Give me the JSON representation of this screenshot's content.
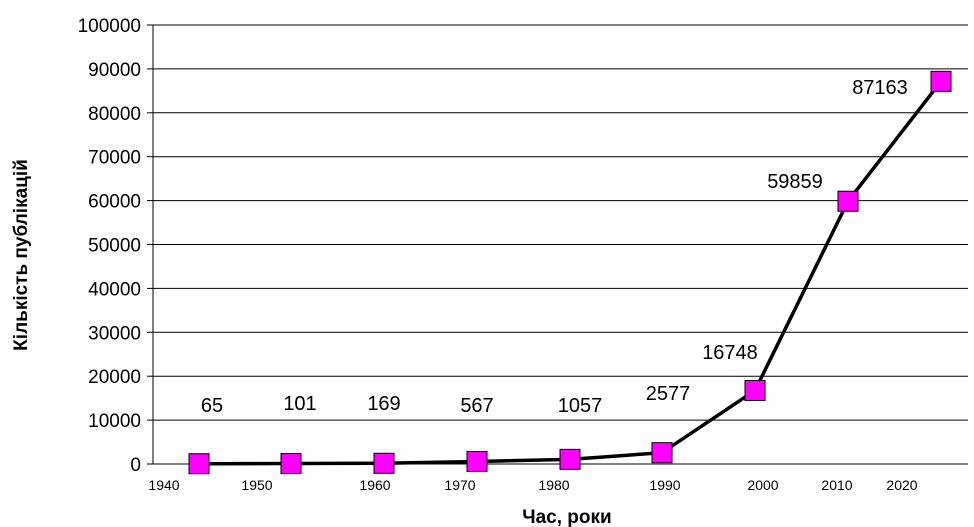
{
  "chart_data": {
    "type": "line",
    "title": "",
    "xlabel": "Час, роки",
    "ylabel": "Кількість публікацій",
    "ylim": [
      0,
      100000
    ],
    "yticks": [
      0,
      10000,
      20000,
      30000,
      40000,
      50000,
      60000,
      70000,
      80000,
      90000,
      100000
    ],
    "xtick_labels": [
      "1940",
      "1950",
      "1960",
      "1970",
      "1980",
      "1990",
      "2000",
      "2010",
      "2020"
    ],
    "grid": "horizontal",
    "legend": "none",
    "series": [
      {
        "x": [
          "1940s",
          "1950s",
          "1960s",
          "1970s",
          "1980s",
          "1990s",
          "2000s",
          "2010s",
          "2020s"
        ],
        "values": [
          65,
          101,
          169,
          567,
          1057,
          2577,
          16748,
          59859,
          87163
        ],
        "data_labels": [
          "65",
          "101",
          "169",
          "567",
          "1057",
          "2577",
          "16748",
          "59859",
          "87163"
        ],
        "line_color": "#000000",
        "marker": "square",
        "marker_color": "#ff00ff"
      }
    ]
  }
}
